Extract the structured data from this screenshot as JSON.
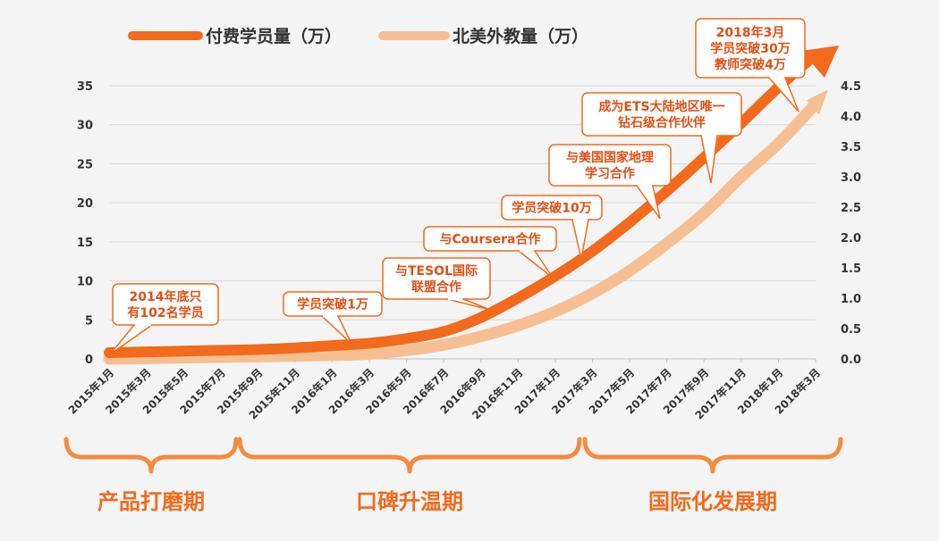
{
  "colors": {
    "paid": "#f26a1b",
    "teachers": "#f6bf93",
    "annotation_border": "#f26a1b",
    "annotation_text": "#e24e12",
    "phase": "#f58b3d",
    "grid": "#d9d9d9",
    "background": "#f4f4f4"
  },
  "legend": {
    "paid": "付费学员量（万）",
    "teachers": "北美外教量（万）"
  },
  "chart_data": {
    "type": "line",
    "x": [
      "2015年1月",
      "2015年3月",
      "2015年5月",
      "2015年7月",
      "2015年9月",
      "2015年11月",
      "2016年1月",
      "2016年3月",
      "2016年5月",
      "2016年7月",
      "2016年9月",
      "2016年11月",
      "2017年1月",
      "2017年3月",
      "2017年5月",
      "2017年7月",
      "2017年9月",
      "2017年11月",
      "2018年1月",
      "2018年3月"
    ],
    "series": [
      {
        "name": "付费学员量（万）",
        "axis": "left",
        "values": [
          0.8,
          0.9,
          1.0,
          1.1,
          1.2,
          1.4,
          1.7,
          2.0,
          2.6,
          3.5,
          5.3,
          7.8,
          10.6,
          13.8,
          17.5,
          21.5,
          25.8,
          30.2,
          34.8,
          39.0
        ]
      },
      {
        "name": "北美外教量（万）",
        "axis": "right",
        "values": [
          0.0,
          0.01,
          0.02,
          0.03,
          0.04,
          0.05,
          0.06,
          0.08,
          0.14,
          0.23,
          0.37,
          0.55,
          0.78,
          1.08,
          1.45,
          1.9,
          2.4,
          3.0,
          3.55,
          4.2
        ]
      }
    ],
    "y_left": {
      "range": [
        0,
        35
      ],
      "ticks": [
        "0",
        "5",
        "10",
        "15",
        "20",
        "25",
        "30",
        "35"
      ]
    },
    "y_right": {
      "range": [
        0,
        4.5
      ],
      "ticks": [
        "0.0",
        "0.5",
        "1.0",
        "1.5",
        "2.0",
        "2.5",
        "3.0",
        "3.5",
        "4.0",
        "4.5"
      ]
    },
    "grid": true,
    "annotations": [
      {
        "lines": [
          "2014年底只",
          "有102名学员"
        ]
      },
      {
        "lines": [
          "学员突破1万"
        ]
      },
      {
        "lines": [
          "与TESOL国际",
          "联盟合作"
        ]
      },
      {
        "lines": [
          "与Coursera合作"
        ]
      },
      {
        "lines": [
          "学员突破10万"
        ]
      },
      {
        "lines": [
          "与美国国家地理",
          "学习合作"
        ]
      },
      {
        "lines": [
          "成为ETS大陆地区唯一",
          "钻石级合作伙伴"
        ]
      },
      {
        "lines": [
          "2018年3月",
          "学员突破30万",
          "教师突破4万"
        ]
      }
    ],
    "phases": [
      "产品打磨期",
      "口碑升温期",
      "国际化发展期"
    ]
  }
}
